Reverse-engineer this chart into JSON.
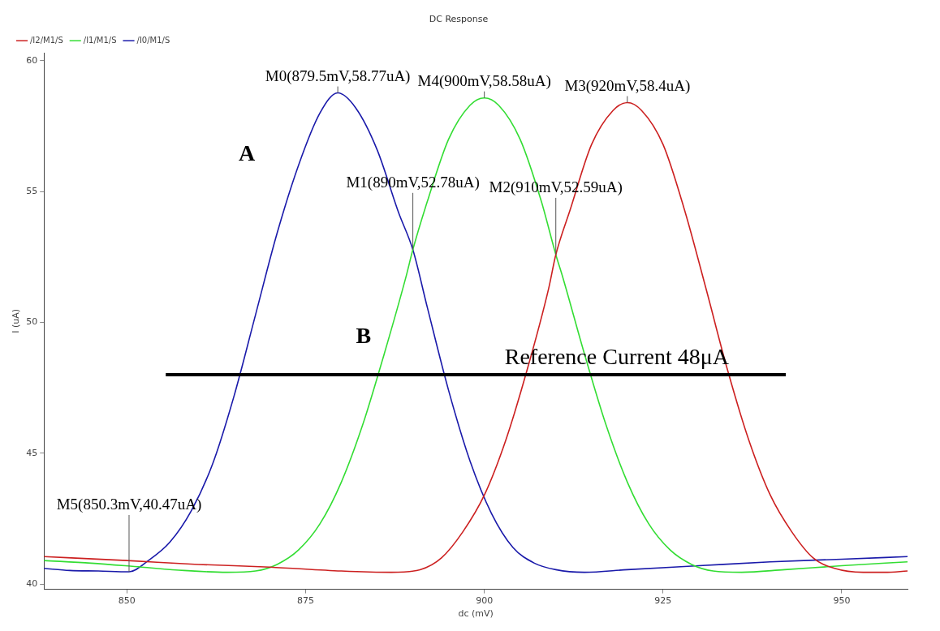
{
  "chart_data": {
    "type": "line",
    "title": "DC Response",
    "xlabel": "dc (mV)",
    "ylabel": "I (uA)",
    "xlim": [
      838.4,
      959.2
    ],
    "xticks": [
      850,
      875,
      900,
      925,
      950
    ],
    "ylim": [
      39.8,
      60.3
    ],
    "yticks": [
      40,
      45,
      50,
      55,
      60
    ],
    "legend": "top left",
    "grid": false,
    "marker": "none",
    "line_style": "solid",
    "series": [
      {
        "name": "/I2/M1/S",
        "color": "#cc2020",
        "x": [
          838.4,
          850,
          860,
          870,
          880,
          887,
          891,
          894,
          897,
          900,
          903,
          906,
          909,
          910,
          912,
          915,
          918,
          920,
          922,
          925,
          928,
          931,
          934,
          937,
          940,
          943,
          946,
          949,
          953,
          956,
          959.2
        ],
        "values": [
          41.05,
          40.9,
          40.75,
          40.65,
          40.5,
          40.45,
          40.55,
          41.0,
          42.0,
          43.4,
          45.5,
          48.2,
          51.3,
          52.59,
          54.3,
          56.8,
          58.1,
          58.4,
          58.1,
          56.8,
          54.3,
          51.3,
          48.2,
          45.5,
          43.4,
          42.0,
          41.0,
          40.6,
          40.45,
          40.45,
          40.5
        ]
      },
      {
        "name": "/I1/M1/S",
        "color": "#33dd33",
        "x": [
          838.4,
          845,
          852,
          858,
          864,
          868,
          871,
          874,
          877,
          880,
          883,
          886,
          889,
          890,
          892,
          895,
          898,
          900,
          902,
          905,
          908,
          910,
          911,
          914,
          917,
          920,
          923,
          926,
          929,
          932,
          936,
          942,
          950,
          959.2
        ],
        "values": [
          40.9,
          40.8,
          40.65,
          40.52,
          40.45,
          40.5,
          40.75,
          41.3,
          42.3,
          43.9,
          46.1,
          48.8,
          51.7,
          52.78,
          54.6,
          57.0,
          58.3,
          58.58,
          58.3,
          57.0,
          54.6,
          52.59,
          51.7,
          48.8,
          46.1,
          43.9,
          42.3,
          41.3,
          40.75,
          40.5,
          40.45,
          40.55,
          40.7,
          40.85
        ]
      },
      {
        "name": "/I0/M1/S",
        "color": "#1a1aaa",
        "x": [
          838.4,
          842,
          846,
          850.3,
          853,
          856,
          859,
          862,
          865,
          868,
          871,
          874,
          877,
          879.5,
          882,
          885,
          888,
          890,
          892,
          895,
          898,
          901,
          904,
          907,
          910,
          914,
          920,
          930,
          940,
          950,
          959.2
        ],
        "values": [
          40.6,
          40.52,
          40.5,
          40.47,
          40.9,
          41.6,
          42.8,
          44.6,
          47.2,
          50.3,
          53.4,
          56.0,
          58.0,
          58.77,
          58.2,
          56.6,
          54.2,
          52.78,
          50.6,
          47.4,
          44.7,
          42.7,
          41.4,
          40.8,
          40.55,
          40.45,
          40.55,
          40.7,
          40.85,
          40.95,
          41.05
        ]
      }
    ],
    "ref_lines": [
      {
        "axis": "y",
        "value": 48,
        "label": "Reference Current 48μA",
        "color": "#000000"
      }
    ],
    "annotations": [
      {
        "text": "M0(879.5mV,58.77uA)",
        "x": 879.5,
        "y": 58.77
      },
      {
        "text": "M4(900mV,58.58uA)",
        "x": 900,
        "y": 58.58
      },
      {
        "text": "M3(920mV,58.4uA)",
        "x": 920,
        "y": 58.4
      },
      {
        "text": "M1(890mV,52.78uA)",
        "x": 890,
        "y": 52.78
      },
      {
        "text": "M2(910mV,52.59uA)",
        "x": 910,
        "y": 52.59
      },
      {
        "text": "M5(850.3mV,40.47uA)",
        "x": 850.3,
        "y": 40.47
      },
      "A",
      "B"
    ]
  }
}
